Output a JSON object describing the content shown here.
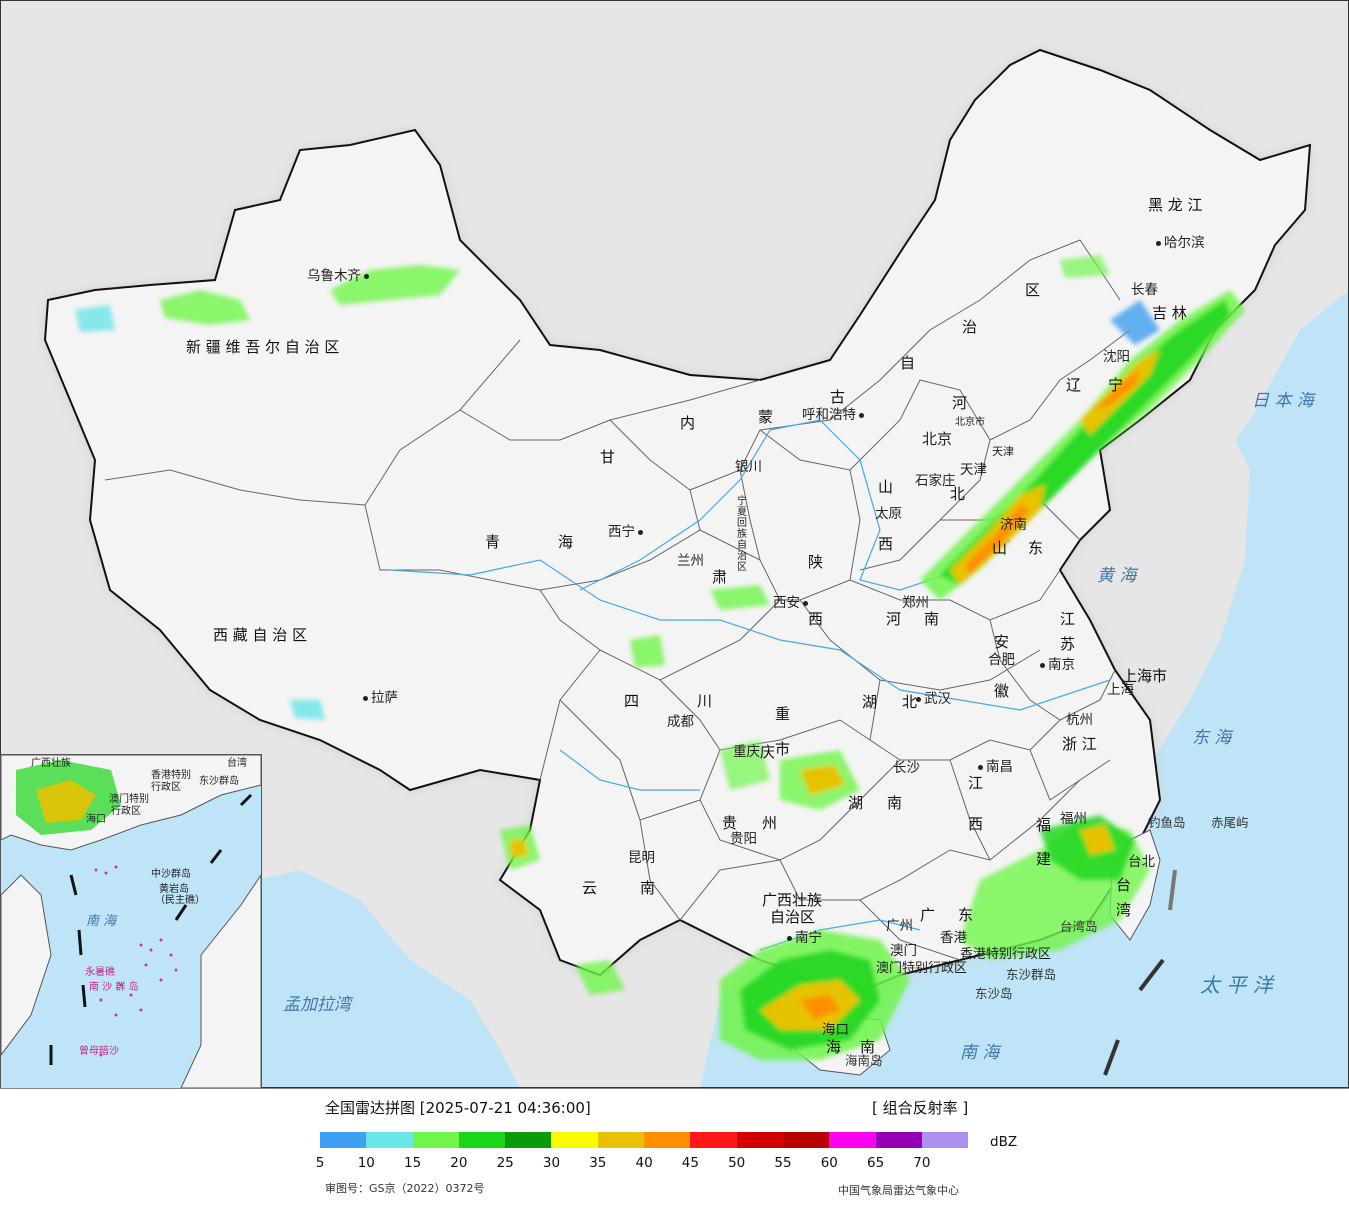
{
  "map": {
    "provinces": [
      {
        "id": "xinjiang",
        "text": "新 疆 维 吾 尔 自 治 区"
      },
      {
        "id": "xizang",
        "text": "西 藏 自 治 区"
      },
      {
        "id": "qinghai1",
        "text": "青"
      },
      {
        "id": "qinghai2",
        "text": "海"
      },
      {
        "id": "gansu1",
        "text": "甘"
      },
      {
        "id": "gansu2",
        "text": "肃"
      },
      {
        "id": "neimeng1",
        "text": "内"
      },
      {
        "id": "neimeng2",
        "text": "蒙"
      },
      {
        "id": "neimeng3",
        "text": "古"
      },
      {
        "id": "neimeng4",
        "text": "自"
      },
      {
        "id": "neimeng5",
        "text": "治"
      },
      {
        "id": "neimeng6",
        "text": "区"
      },
      {
        "id": "heilong",
        "text": "黑 龙 江"
      },
      {
        "id": "jilin",
        "text": "吉 林"
      },
      {
        "id": "liaoning1",
        "text": "辽"
      },
      {
        "id": "liaoning2",
        "text": "宁"
      },
      {
        "id": "hebei1",
        "text": "河"
      },
      {
        "id": "hebei2",
        "text": "北"
      },
      {
        "id": "shanxi1",
        "text": "山"
      },
      {
        "id": "shanxi2",
        "text": "西"
      },
      {
        "id": "shaanxi1",
        "text": "陕"
      },
      {
        "id": "shaanxi2",
        "text": "西"
      },
      {
        "id": "ningxia",
        "text": "宁夏回族自治区"
      },
      {
        "id": "shandong1",
        "text": "山"
      },
      {
        "id": "shandong2",
        "text": "东"
      },
      {
        "id": "henan1",
        "text": "河"
      },
      {
        "id": "henan2",
        "text": "南"
      },
      {
        "id": "jiangsu1",
        "text": "江"
      },
      {
        "id": "jiangsu2",
        "text": "苏"
      },
      {
        "id": "anhui1",
        "text": "安"
      },
      {
        "id": "anhui2",
        "text": "徽"
      },
      {
        "id": "hubei1",
        "text": "湖"
      },
      {
        "id": "hubei2",
        "text": "北"
      },
      {
        "id": "sichuan1",
        "text": "四"
      },
      {
        "id": "sichuan2",
        "text": "川"
      },
      {
        "id": "chongqing1",
        "text": "重"
      },
      {
        "id": "chongqing2",
        "text": "庆"
      },
      {
        "id": "chongqing3",
        "text": "市"
      },
      {
        "id": "zhejiang",
        "text": "浙 江"
      },
      {
        "id": "jiangxi1",
        "text": "江"
      },
      {
        "id": "jiangxi2",
        "text": "西"
      },
      {
        "id": "hunan1",
        "text": "湖"
      },
      {
        "id": "hunan2",
        "text": "南"
      },
      {
        "id": "guizhou1",
        "text": "贵"
      },
      {
        "id": "guizhou2",
        "text": "州"
      },
      {
        "id": "yunnan1",
        "text": "云"
      },
      {
        "id": "yunnan2",
        "text": "南"
      },
      {
        "id": "guangxi1",
        "text": "广西壮族"
      },
      {
        "id": "guangxi2",
        "text": "自治区"
      },
      {
        "id": "guangdong1",
        "text": "广"
      },
      {
        "id": "guangdong2",
        "text": "东"
      },
      {
        "id": "fujian1",
        "text": "福"
      },
      {
        "id": "fujian2",
        "text": "建"
      },
      {
        "id": "taiwan1",
        "text": "台"
      },
      {
        "id": "taiwan2",
        "text": "湾"
      },
      {
        "id": "hainan1",
        "text": "海"
      },
      {
        "id": "hainan2",
        "text": "南"
      },
      {
        "id": "shanghai",
        "text": "上海市"
      },
      {
        "id": "tianjin",
        "text": "天津"
      },
      {
        "id": "beijingshi",
        "text": "北京市"
      },
      {
        "id": "hk",
        "text": "香港特别行政区"
      },
      {
        "id": "macau",
        "text": "澳门特别行政区"
      }
    ],
    "cities": [
      {
        "id": "urumqi",
        "text": "乌鲁木齐"
      },
      {
        "id": "lasa",
        "text": "拉萨"
      },
      {
        "id": "xining",
        "text": "西宁"
      },
      {
        "id": "lanzhou",
        "text": "兰州"
      },
      {
        "id": "yinchuan",
        "text": "银川"
      },
      {
        "id": "huhehaote",
        "text": "呼和浩特"
      },
      {
        "id": "harbin",
        "text": "哈尔滨"
      },
      {
        "id": "changchun",
        "text": "长春"
      },
      {
        "id": "shenyang",
        "text": "沈阳"
      },
      {
        "id": "beijing",
        "text": "北京"
      },
      {
        "id": "tianjin_c",
        "text": "天津"
      },
      {
        "id": "shijiazhuang",
        "text": "石家庄"
      },
      {
        "id": "taiyuan",
        "text": "太原"
      },
      {
        "id": "jinan",
        "text": "济南"
      },
      {
        "id": "zhengzhou",
        "text": "郑州"
      },
      {
        "id": "xian",
        "text": "西安"
      },
      {
        "id": "nanjing",
        "text": "南京"
      },
      {
        "id": "hefei",
        "text": "合肥"
      },
      {
        "id": "shanghai_c",
        "text": "上海"
      },
      {
        "id": "hangzhou",
        "text": "杭州"
      },
      {
        "id": "wuhan",
        "text": "武汉"
      },
      {
        "id": "chengdu",
        "text": "成都"
      },
      {
        "id": "chongqing_c",
        "text": "重庆"
      },
      {
        "id": "changsha",
        "text": "长沙"
      },
      {
        "id": "nanchang",
        "text": "南昌"
      },
      {
        "id": "guiyang",
        "text": "贵阳"
      },
      {
        "id": "kunming",
        "text": "昆明"
      },
      {
        "id": "nanning",
        "text": "南宁"
      },
      {
        "id": "guangzhou",
        "text": "广州"
      },
      {
        "id": "fuzhou",
        "text": "福州"
      },
      {
        "id": "taibei",
        "text": "台北"
      },
      {
        "id": "haikou",
        "text": "海口"
      },
      {
        "id": "aomen",
        "text": "澳门"
      },
      {
        "id": "xianggang",
        "text": "香港"
      }
    ],
    "seas": [
      {
        "id": "ribenhai",
        "text": "日 本 海"
      },
      {
        "id": "huanghai",
        "text": "黄 海"
      },
      {
        "id": "donghai",
        "text": "东 海"
      },
      {
        "id": "taipingyang",
        "text": "太 平 洋"
      },
      {
        "id": "nanhai",
        "text": "南 海"
      },
      {
        "id": "mengjiala",
        "text": "孟加拉湾"
      }
    ],
    "islands": [
      {
        "id": "diaoyu",
        "text": "钓鱼岛"
      },
      {
        "id": "chiwei",
        "text": "赤尾屿"
      },
      {
        "id": "taiwandao",
        "text": "台湾岛"
      },
      {
        "id": "dongsha",
        "text": "东沙群岛"
      },
      {
        "id": "dongshadao",
        "text": "东沙岛"
      },
      {
        "id": "hainandao",
        "text": "海南岛"
      }
    ],
    "inset": {
      "labels": [
        {
          "id": "i1",
          "text": "广西壮族"
        },
        {
          "id": "i2",
          "text": "台湾"
        },
        {
          "id": "i3",
          "text": "东沙群岛"
        },
        {
          "id": "i4",
          "text": "澳门特别"
        },
        {
          "id": "i5",
          "text": "行政区"
        },
        {
          "id": "i6",
          "text": "中沙群岛"
        },
        {
          "id": "i7",
          "text": "黄岩岛"
        },
        {
          "id": "i8",
          "text": "（民主礁）"
        },
        {
          "id": "i9",
          "text": "南 海"
        },
        {
          "id": "i10",
          "text": "永暑礁"
        },
        {
          "id": "i11",
          "text": "南 沙 群 岛"
        },
        {
          "id": "i12",
          "text": "曾母暗沙"
        },
        {
          "id": "i13",
          "text": "海口"
        },
        {
          "id": "i14",
          "text": "香港特别"
        },
        {
          "id": "i15",
          "text": "行政区"
        }
      ]
    }
  },
  "legend": {
    "title": "全国雷达拼图 [2025-07-21 04:36:00]",
    "product": "[ 组合反射率 ]",
    "unit": "dBZ",
    "colors": [
      "#3d9ff0",
      "#6ae5e8",
      "#6ff54b",
      "#1ad51a",
      "#0a9a0a",
      "#fbfb00",
      "#e6c200",
      "#ff8f00",
      "#ff1818",
      "#d40000",
      "#b80000",
      "#ff00f0",
      "#9600b4",
      "#ad90f0"
    ],
    "ticks": [
      "5",
      "10",
      "15",
      "20",
      "25",
      "30",
      "35",
      "40",
      "45",
      "50",
      "55",
      "60",
      "65",
      "70"
    ],
    "review_no": "审图号：GS京（2022）0372号",
    "org": "中国气象局雷达气象中心"
  }
}
